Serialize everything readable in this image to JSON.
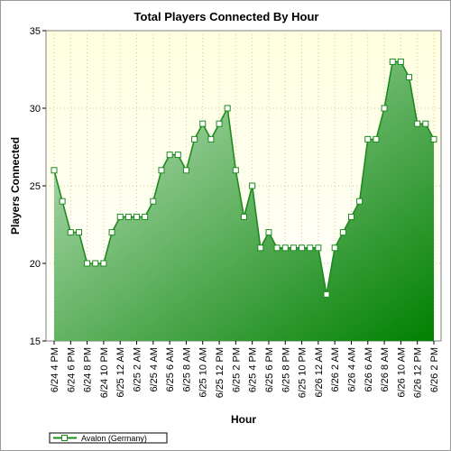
{
  "chart_data": {
    "type": "area",
    "title": "Total Players Connected By Hour",
    "xlabel": "Hour",
    "ylabel": "Players Connected",
    "ylim": [
      15,
      35
    ],
    "yticks": [
      15,
      20,
      25,
      30,
      35
    ],
    "grid": true,
    "legend_position": "bottom-left",
    "x_tick_labels": [
      "6/24 4 PM",
      "6/24 6 PM",
      "6/24 8 PM",
      "6/24 10 PM",
      "6/25 12 AM",
      "6/25 2 AM",
      "6/25 4 AM",
      "6/25 6 AM",
      "6/25 8 AM",
      "6/25 10 AM",
      "6/25 12 PM",
      "6/25 2 PM",
      "6/25 4 PM",
      "6/25 6 PM",
      "6/25 8 PM",
      "6/25 10 PM",
      "6/26 12 AM",
      "6/26 2 AM",
      "6/26 4 AM",
      "6/26 6 AM",
      "6/26 8 AM",
      "6/26 10 AM",
      "6/26 12 PM",
      "6/26 2 PM"
    ],
    "series": [
      {
        "name": "Avalon (Germany)",
        "color": "#1e8a1e",
        "fill_top": "#c8e6c8",
        "fill_bottom": "#008000",
        "values": [
          26,
          24,
          22,
          22,
          20,
          20,
          20,
          22,
          23,
          23,
          23,
          23,
          24,
          26,
          27,
          27,
          26,
          28,
          29,
          28,
          29,
          30,
          26,
          23,
          25,
          21,
          22,
          21,
          21,
          21,
          21,
          21,
          21,
          18,
          21,
          22,
          23,
          24,
          28,
          28,
          30,
          33,
          33,
          32,
          29,
          29,
          28
        ]
      }
    ]
  },
  "colors": {
    "plot_bg_top": "#ffffe0",
    "plot_bg_bottom": "#ffffff",
    "grid": "#c8c8a0"
  }
}
